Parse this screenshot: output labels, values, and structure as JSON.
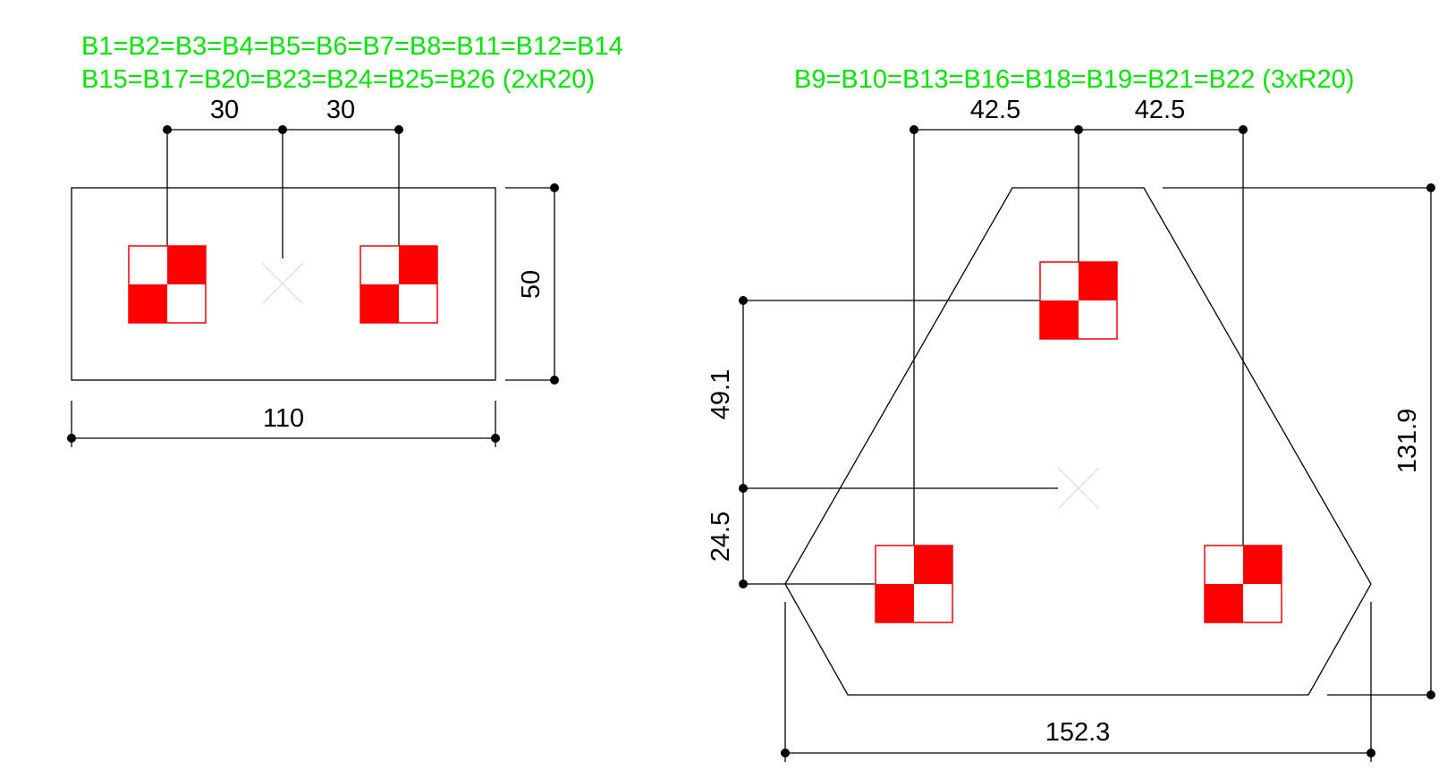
{
  "left_section": {
    "label_line1": "B1=B2=B3=B4=B5=B6=B7=B8=B11=B12=B14",
    "label_line2": "B15=B17=B20=B23=B24=B25=B26 (2xR20)",
    "dim_spacing_left": "30",
    "dim_spacing_right": "30",
    "dim_height": "50",
    "dim_width": "110"
  },
  "right_section": {
    "label": "B9=B10=B13=B16=B18=B19=B21=B22 (3xR20)",
    "dim_spacing_left": "42.5",
    "dim_spacing_right": "42.5",
    "dim_upper_offset": "49.1",
    "dim_lower_offset": "24.5",
    "dim_height": "131.9",
    "dim_width": "152.3"
  },
  "colors": {
    "label": "#00e600",
    "rebar": "#ff0000",
    "lines": "#000000"
  }
}
